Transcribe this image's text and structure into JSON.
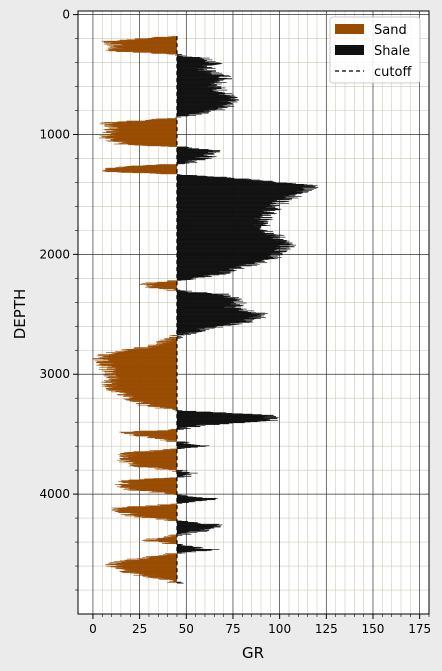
{
  "chart_data": {
    "type": "area",
    "xlabel": "GR",
    "ylabel": "DEPTH",
    "xlim": [
      -8,
      180
    ],
    "ylim": [
      5000,
      -30
    ],
    "y_inverted": true,
    "x_ticks": [
      "0",
      "25",
      "50",
      "75",
      "100",
      "125",
      "150",
      "175"
    ],
    "y_ticks": [
      "0",
      "1000",
      "2000",
      "3000",
      "4000"
    ],
    "grid": true,
    "minor_grid": true,
    "cutoff": 45,
    "legend_position": "top-right",
    "legend": [
      {
        "label": "Sand",
        "color": "#994c00",
        "kind": "patch"
      },
      {
        "label": "Shale",
        "color": "#111111",
        "kind": "patch"
      },
      {
        "label": "cutoff",
        "color": "#000000",
        "kind": "dashed-line"
      }
    ],
    "series": [
      {
        "name": "Sand",
        "color": "#994c00",
        "fill_side": "left-of-cutoff"
      },
      {
        "name": "Shale",
        "color": "#111111",
        "fill_side": "right-of-cutoff"
      }
    ],
    "depth_profile": [
      [
        180,
        42
      ],
      [
        220,
        8
      ],
      [
        260,
        12
      ],
      [
        300,
        10
      ],
      [
        330,
        45
      ],
      [
        360,
        58
      ],
      [
        400,
        65
      ],
      [
        460,
        60
      ],
      [
        520,
        72
      ],
      [
        600,
        66
      ],
      [
        700,
        74
      ],
      [
        780,
        70
      ],
      [
        860,
        45
      ],
      [
        900,
        8
      ],
      [
        960,
        10
      ],
      [
        1020,
        6
      ],
      [
        1080,
        16
      ],
      [
        1100,
        45
      ],
      [
        1130,
        68
      ],
      [
        1180,
        62
      ],
      [
        1240,
        50
      ],
      [
        1270,
        12
      ],
      [
        1310,
        8
      ],
      [
        1330,
        45
      ],
      [
        1360,
        75
      ],
      [
        1420,
        118
      ],
      [
        1480,
        112
      ],
      [
        1550,
        102
      ],
      [
        1600,
        98
      ],
      [
        1680,
        92
      ],
      [
        1760,
        90
      ],
      [
        1840,
        98
      ],
      [
        1920,
        104
      ],
      [
        1980,
        100
      ],
      [
        2040,
        96
      ],
      [
        2100,
        80
      ],
      [
        2160,
        68
      ],
      [
        2200,
        55
      ],
      [
        2240,
        28
      ],
      [
        2270,
        30
      ],
      [
        2300,
        45
      ],
      [
        2330,
        70
      ],
      [
        2380,
        80
      ],
      [
        2440,
        74
      ],
      [
        2500,
        92
      ],
      [
        2560,
        82
      ],
      [
        2620,
        60
      ],
      [
        2680,
        45
      ],
      [
        2720,
        40
      ],
      [
        2780,
        26
      ],
      [
        2820,
        8
      ],
      [
        2860,
        4
      ],
      [
        2900,
        6
      ],
      [
        2960,
        8
      ],
      [
        3020,
        10
      ],
      [
        3080,
        9
      ],
      [
        3140,
        12
      ],
      [
        3200,
        20
      ],
      [
        3260,
        30
      ],
      [
        3300,
        45
      ],
      [
        3320,
        70
      ],
      [
        3340,
        95
      ],
      [
        3380,
        98
      ],
      [
        3420,
        60
      ],
      [
        3460,
        45
      ],
      [
        3480,
        16
      ],
      [
        3520,
        30
      ],
      [
        3560,
        45
      ],
      [
        3590,
        60
      ],
      [
        3620,
        45
      ],
      [
        3650,
        20
      ],
      [
        3700,
        16
      ],
      [
        3760,
        22
      ],
      [
        3800,
        45
      ],
      [
        3830,
        55
      ],
      [
        3860,
        45
      ],
      [
        3880,
        18
      ],
      [
        3920,
        15
      ],
      [
        3960,
        20
      ],
      [
        4000,
        45
      ],
      [
        4040,
        65
      ],
      [
        4080,
        45
      ],
      [
        4110,
        12
      ],
      [
        4140,
        15
      ],
      [
        4180,
        22
      ],
      [
        4220,
        45
      ],
      [
        4260,
        70
      ],
      [
        4300,
        60
      ],
      [
        4340,
        45
      ],
      [
        4380,
        28
      ],
      [
        4420,
        45
      ],
      [
        4460,
        65
      ],
      [
        4490,
        45
      ],
      [
        4540,
        22
      ],
      [
        4580,
        10
      ],
      [
        4620,
        14
      ],
      [
        4660,
        22
      ],
      [
        4700,
        35
      ],
      [
        4740,
        45
      ]
    ]
  }
}
